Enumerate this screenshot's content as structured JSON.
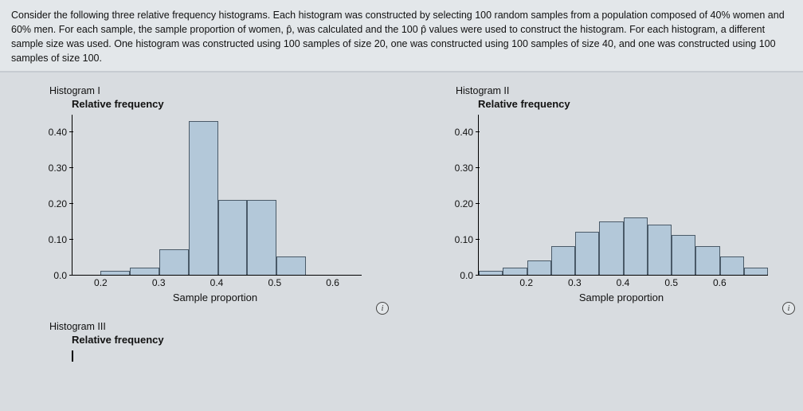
{
  "prompt_text": "Consider the following three relative frequency histograms. Each histogram was constructed by selecting 100 random samples from a population composed of 40% women and 60% men. For each sample, the sample proportion of women, p̂, was calculated and the 100 p̂ values were used to construct the histogram. For each histogram, a different sample size was used. One histogram was constructed using 100 samples of size 20, one was constructed using 100 samples of size 40, and one was constructed using 100 samples of size 100.",
  "chart1": {
    "title": "Histogram I",
    "ylabel": "Relative frequency",
    "xlabel": "Sample proportion",
    "type": "histogram",
    "ylim": [
      0.0,
      0.45
    ],
    "ytick_labels": [
      "0.0",
      "0.10",
      "0.20",
      "0.30",
      "0.40"
    ],
    "ytick_vals": [
      0.0,
      0.1,
      0.2,
      0.3,
      0.4
    ],
    "x_range": [
      0.15,
      0.65
    ],
    "bin_width": 0.05,
    "xtick_labels": [
      "0.2",
      "0.3",
      "0.4",
      "0.5",
      "0.6"
    ],
    "xtick_vals": [
      0.2,
      0.3,
      0.4,
      0.5,
      0.6
    ],
    "bin_edges": [
      0.15,
      0.2,
      0.25,
      0.3,
      0.35,
      0.4,
      0.45,
      0.5,
      0.55,
      0.6,
      0.65
    ],
    "bar_heights": [
      0.0,
      0.01,
      0.02,
      0.07,
      0.43,
      0.21,
      0.21,
      0.05,
      0.0,
      0.0
    ],
    "bar_fill": "#b3c8d9",
    "bar_border": "#4a5a68",
    "background": "#d8dce0",
    "label_fontsize": 13,
    "tick_fontsize": 12
  },
  "chart2": {
    "title": "Histogram II",
    "ylabel": "Relative frequency",
    "xlabel": "Sample proportion",
    "type": "histogram",
    "ylim": [
      0.0,
      0.45
    ],
    "ytick_labels": [
      "0.0",
      "0.10",
      "0.20",
      "0.30",
      "0.40"
    ],
    "ytick_vals": [
      0.0,
      0.1,
      0.2,
      0.3,
      0.4
    ],
    "x_range": [
      0.1,
      0.7
    ],
    "bin_width": 0.05,
    "xtick_labels": [
      "0.2",
      "0.3",
      "0.4",
      "0.5",
      "0.6"
    ],
    "xtick_vals": [
      0.2,
      0.3,
      0.4,
      0.5,
      0.6
    ],
    "bin_edges": [
      0.1,
      0.15,
      0.2,
      0.25,
      0.3,
      0.35,
      0.4,
      0.45,
      0.5,
      0.55,
      0.6,
      0.65,
      0.7
    ],
    "bar_heights": [
      0.01,
      0.02,
      0.04,
      0.08,
      0.12,
      0.15,
      0.16,
      0.14,
      0.11,
      0.08,
      0.05,
      0.02
    ],
    "bar_fill": "#b3c8d9",
    "bar_border": "#4a5a68",
    "background": "#d8dce0",
    "label_fontsize": 13,
    "tick_fontsize": 12
  },
  "chart3": {
    "title": "Histogram III",
    "ylabel": "Relative frequency"
  },
  "info_icon_glyph": "i"
}
